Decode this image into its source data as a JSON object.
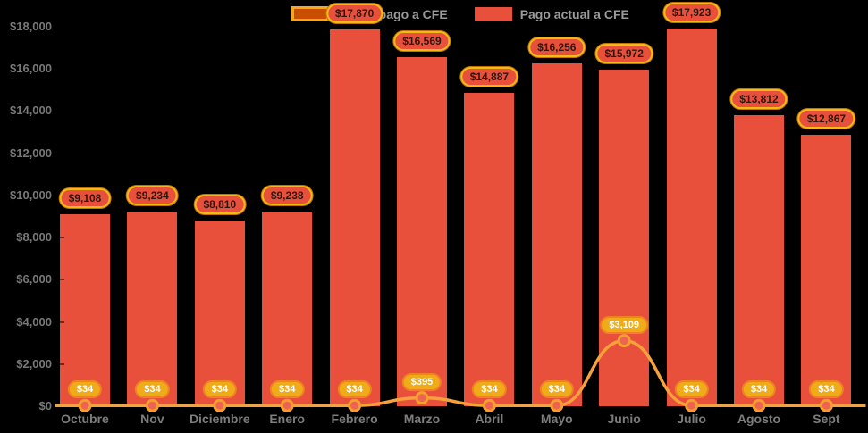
{
  "chart_data": {
    "type": "bar",
    "title": "",
    "xlabel": "",
    "ylabel": "",
    "categories": [
      "Octubre",
      "Nov",
      "Diciembre",
      "Enero",
      "Febrero",
      "Marzo",
      "Abril",
      "Mayo",
      "Junio",
      "Julio",
      "Agosto",
      "Sept"
    ],
    "series": [
      {
        "name": "Nuevo pago a CFE",
        "type": "line",
        "values": [
          34,
          34,
          34,
          34,
          34,
          395,
          34,
          34,
          3109,
          34,
          34,
          34
        ],
        "labels": [
          "$34",
          "$34",
          "$34",
          "$34",
          "$34",
          "$395",
          "$34",
          "$34",
          "$3,109",
          "$34",
          "$34",
          "$34"
        ]
      },
      {
        "name": "Pago actual a CFE",
        "type": "bar",
        "values": [
          9108,
          9234,
          8810,
          9238,
          17870,
          16569,
          14887,
          16256,
          15972,
          17923,
          13812,
          12867
        ],
        "labels": [
          "$9,108",
          "$9,234",
          "$8,810",
          "$9,238",
          "$17,870",
          "$16,569",
          "$14,887",
          "$16,256",
          "$15,972",
          "$17,923",
          "$13,812",
          "$12,867"
        ]
      }
    ],
    "ylim": [
      0,
      18000
    ],
    "ytick_step": 2000,
    "ytick_labels": [
      "$0",
      "$2,000",
      "$4,000",
      "$6,000",
      "$8,000",
      "$10,000",
      "$12,000",
      "$14,000",
      "$16,000",
      "$18,000"
    ],
    "legend_position": "top-center",
    "grid": false
  },
  "colors": {
    "background": "#000000",
    "bar": "#e8503c",
    "line": "#f6a13a",
    "marker_fill": "#ee6352",
    "marker_stroke": "#f5a02e",
    "bar_pill_bg": "#e8503c",
    "bar_pill_border": "#f3b918",
    "line_pill_bg": "#f0ac18",
    "line_pill_border": "#ef8323",
    "axis_text": "#7d7d7d",
    "legend_text": "#9a9a9a"
  }
}
